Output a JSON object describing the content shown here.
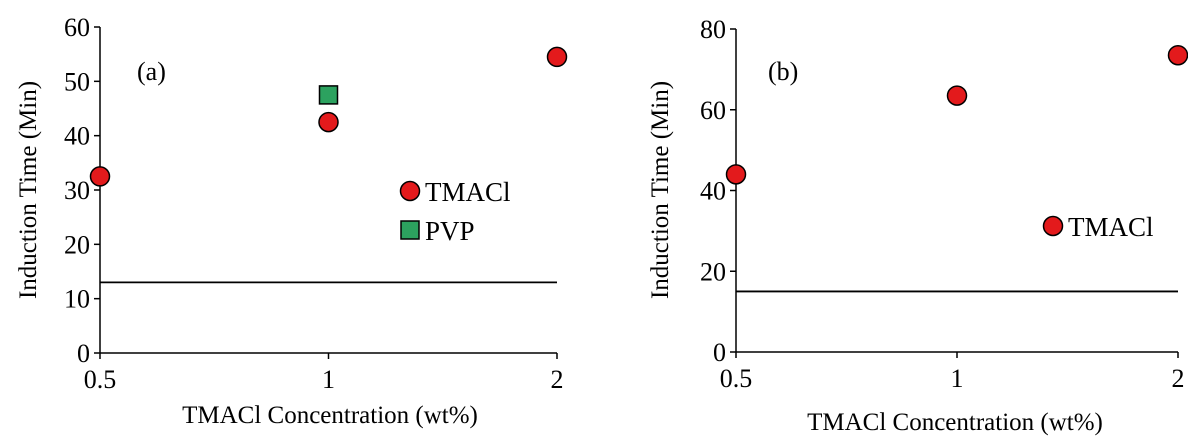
{
  "colors": {
    "tmacl": "#e31a1c",
    "pvp": "#2ca25f",
    "marker_stroke": "#000000",
    "axis": "#000000"
  },
  "chart_data": [
    {
      "type": "scatter",
      "panel_label": "(a)",
      "xlabel": "TMACl Concentration (wt%)",
      "ylabel": "Induction Time (Min)",
      "x_ticks": [
        "0.5",
        "1",
        "2"
      ],
      "y_ticks": [
        "0",
        "10",
        "20",
        "30",
        "40",
        "50",
        "60"
      ],
      "ylim": [
        0,
        60
      ],
      "reference_line": {
        "y": 13
      },
      "series": [
        {
          "name": "TMACl",
          "marker": "circle",
          "color": "#e31a1c",
          "points": [
            {
              "x": "0.5",
              "y": 32.5
            },
            {
              "x": "1",
              "y": 42.5
            },
            {
              "x": "2",
              "y": 54.5
            }
          ]
        },
        {
          "name": "PVP",
          "marker": "square",
          "color": "#2ca25f",
          "points": [
            {
              "x": "1",
              "y": 47.5
            }
          ]
        }
      ],
      "legend": [
        {
          "label": "TMACl",
          "marker": "circle",
          "color": "#e31a1c"
        },
        {
          "label": "PVP",
          "marker": "square",
          "color": "#2ca25f"
        }
      ]
    },
    {
      "type": "scatter",
      "panel_label": "(b)",
      "xlabel": "TMACl Concentration (wt%)",
      "ylabel": "Induction Time (Min)",
      "x_ticks": [
        "0.5",
        "1",
        "2"
      ],
      "y_ticks": [
        "0",
        "20",
        "40",
        "60",
        "80"
      ],
      "ylim": [
        0,
        80
      ],
      "reference_line": {
        "y": 15
      },
      "series": [
        {
          "name": "TMACl",
          "marker": "circle",
          "color": "#e31a1c",
          "points": [
            {
              "x": "0.5",
              "y": 44
            },
            {
              "x": "1",
              "y": 63.5
            },
            {
              "x": "2",
              "y": 73.5
            }
          ]
        }
      ],
      "legend": [
        {
          "label": "TMACl",
          "marker": "circle",
          "color": "#e31a1c"
        }
      ]
    }
  ]
}
